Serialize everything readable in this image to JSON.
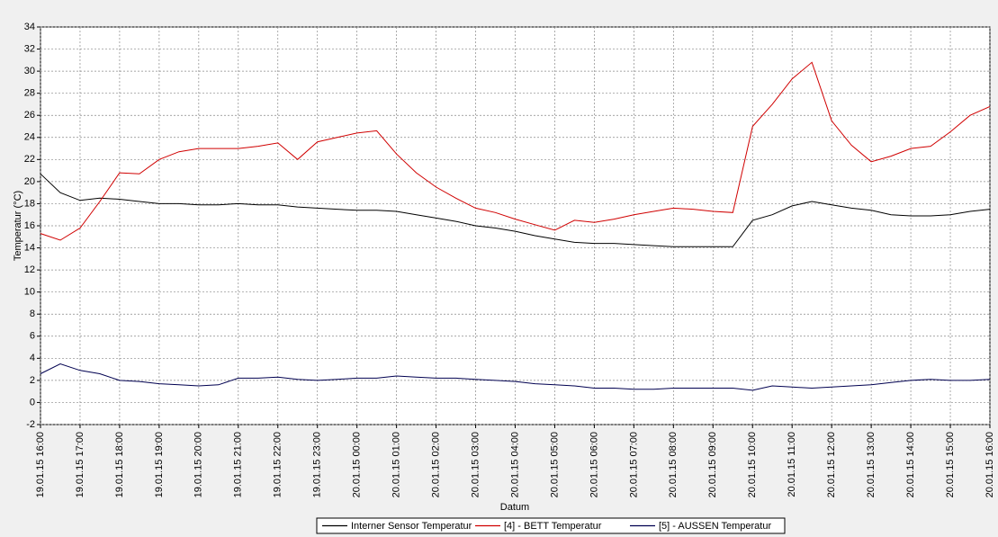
{
  "chart_data": {
    "type": "line",
    "x_label": "Datum",
    "y_label": "Temperatur (°C)",
    "x": [
      "19.01.15 16:00",
      "19.01.15 16:30",
      "19.01.15 17:00",
      "19.01.15 17:30",
      "19.01.15 18:00",
      "19.01.15 18:30",
      "19.01.15 19:00",
      "19.01.15 19:30",
      "19.01.15 20:00",
      "19.01.15 20:30",
      "19.01.15 21:00",
      "19.01.15 21:30",
      "19.01.15 22:00",
      "19.01.15 22:30",
      "19.01.15 23:00",
      "19.01.15 23:30",
      "20.01.15 00:00",
      "20.01.15 00:30",
      "20.01.15 01:00",
      "20.01.15 01:30",
      "20.01.15 02:00",
      "20.01.15 02:30",
      "20.01.15 03:00",
      "20.01.15 03:30",
      "20.01.15 04:00",
      "20.01.15 04:30",
      "20.01.15 05:00",
      "20.01.15 05:30",
      "20.01.15 06:00",
      "20.01.15 06:30",
      "20.01.15 07:00",
      "20.01.15 07:30",
      "20.01.15 08:00",
      "20.01.15 08:30",
      "20.01.15 09:00",
      "20.01.15 09:30",
      "20.01.15 10:00",
      "20.01.15 10:30",
      "20.01.15 11:00",
      "20.01.15 11:30",
      "20.01.15 12:00",
      "20.01.15 12:30",
      "20.01.15 13:00",
      "20.01.15 13:30",
      "20.01.15 14:00",
      "20.01.15 14:30",
      "20.01.15 15:00",
      "20.01.15 15:30",
      "20.01.15 16:00"
    ],
    "series": [
      {
        "name": "Interner Sensor Temperatur",
        "color": "#000000",
        "values": [
          20.7,
          19.0,
          18.3,
          18.5,
          18.4,
          18.2,
          18.0,
          18.0,
          17.9,
          17.9,
          18.0,
          17.9,
          17.9,
          17.7,
          17.6,
          17.5,
          17.4,
          17.4,
          17.3,
          17.0,
          16.7,
          16.4,
          16.0,
          15.8,
          15.5,
          15.1,
          14.8,
          14.5,
          14.4,
          14.4,
          14.3,
          14.2,
          14.1,
          14.1,
          14.1,
          14.1,
          16.5,
          17.0,
          17.8,
          18.2,
          17.9,
          17.6,
          17.4,
          17.0,
          16.9,
          16.9,
          17.0,
          17.3,
          17.5
        ]
      },
      {
        "name": "[4] - BETT Temperatur",
        "color": "#d00000",
        "values": [
          15.3,
          14.7,
          15.8,
          18.2,
          20.8,
          20.7,
          22.0,
          22.7,
          23.0,
          23.0,
          23.0,
          23.2,
          23.5,
          22.0,
          23.6,
          24.0,
          24.4,
          24.6,
          22.5,
          20.8,
          19.5,
          18.5,
          17.6,
          17.2,
          16.6,
          16.1,
          15.6,
          16.5,
          16.3,
          16.6,
          17.0,
          17.3,
          17.6,
          17.5,
          17.3,
          17.2,
          25.0,
          27.0,
          29.3,
          30.8,
          25.5,
          23.3,
          21.8,
          22.3,
          23.0,
          23.2,
          24.5,
          26.0,
          26.8
        ]
      },
      {
        "name": "[5] - AUSSEN Temperatur",
        "color": "#000050",
        "values": [
          2.6,
          3.5,
          2.9,
          2.6,
          2.0,
          1.9,
          1.7,
          1.6,
          1.5,
          1.6,
          2.2,
          2.2,
          2.3,
          2.1,
          2.0,
          2.1,
          2.2,
          2.2,
          2.4,
          2.3,
          2.2,
          2.2,
          2.1,
          2.0,
          1.9,
          1.7,
          1.6,
          1.5,
          1.3,
          1.3,
          1.2,
          1.2,
          1.3,
          1.3,
          1.3,
          1.3,
          1.1,
          1.5,
          1.4,
          1.3,
          1.4,
          1.5,
          1.6,
          1.8,
          2.0,
          2.1,
          2.0,
          2.0,
          2.1
        ]
      }
    ],
    "xlim": [
      "19.01.15 16:00",
      "20.01.15 16:00"
    ],
    "xticks": [
      "19.01.15 16:00",
      "19.01.15 17:00",
      "19.01.15 18:00",
      "19.01.15 19:00",
      "19.01.15 20:00",
      "19.01.15 21:00",
      "19.01.15 22:00",
      "19.01.15 23:00",
      "20.01.15 00:00",
      "20.01.15 01:00",
      "20.01.15 02:00",
      "20.01.15 03:00",
      "20.01.15 04:00",
      "20.01.15 05:00",
      "20.01.15 06:00",
      "20.01.15 07:00",
      "20.01.15 08:00",
      "20.01.15 09:00",
      "20.01.15 10:00",
      "20.01.15 11:00",
      "20.01.15 12:00",
      "20.01.15 13:00",
      "20.01.15 14:00",
      "20.01.15 15:00",
      "20.01.15 16:00"
    ],
    "ylim": [
      -2,
      34
    ],
    "yticks": [
      -2,
      0,
      2,
      4,
      6,
      8,
      10,
      12,
      14,
      16,
      18,
      20,
      22,
      24,
      26,
      28,
      30,
      32,
      34
    ],
    "grid": true
  }
}
